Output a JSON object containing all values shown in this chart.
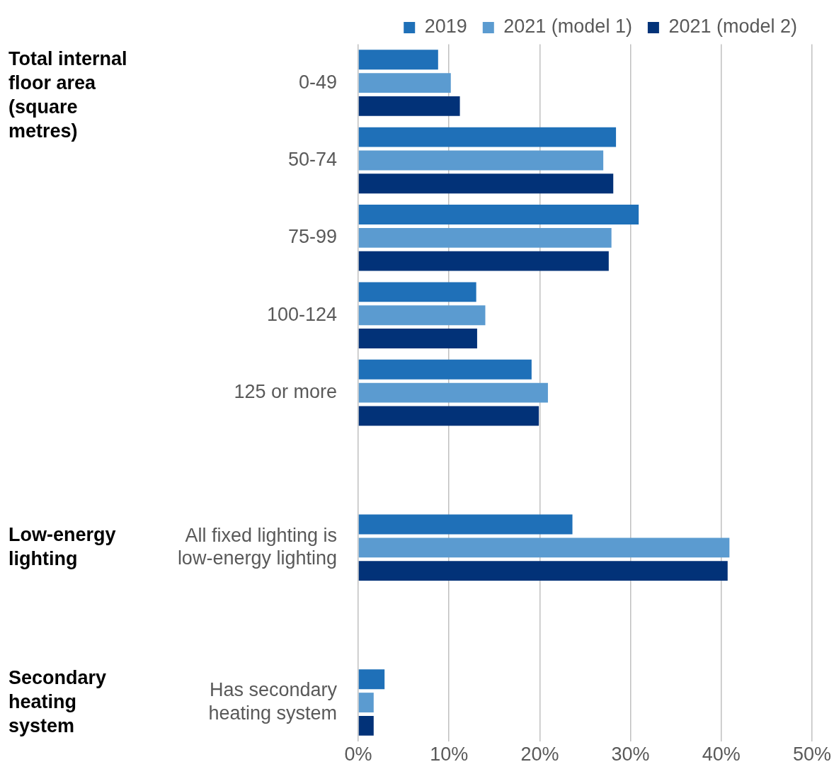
{
  "chart_data": {
    "type": "bar",
    "orientation": "horizontal",
    "categories": [
      "0-49",
      "50-74",
      "75-99",
      "100-124",
      "125 or more",
      null,
      "All fixed lighting is low-energy lighting",
      null,
      "Has secondary heating system"
    ],
    "series": [
      {
        "name": "2019",
        "color": "#1f70b8",
        "values": [
          8.8,
          28.4,
          30.9,
          13.0,
          19.1,
          null,
          23.6,
          null,
          2.9
        ]
      },
      {
        "name": "2021 (model 1)",
        "color": "#5b9bd0",
        "values": [
          10.2,
          27.0,
          27.9,
          14.0,
          20.9,
          null,
          40.9,
          null,
          1.7
        ]
      },
      {
        "name": "2021 (model 2)",
        "color": "#023278",
        "values": [
          11.2,
          28.1,
          27.6,
          13.1,
          19.9,
          null,
          40.7,
          null,
          1.7
        ]
      }
    ],
    "xlim": [
      0,
      50
    ],
    "xticks": [
      {
        "value": 0,
        "label": "0%"
      },
      {
        "value": 10,
        "label": "10%"
      },
      {
        "value": 20,
        "label": "20%"
      },
      {
        "value": 30,
        "label": "30%"
      },
      {
        "value": 40,
        "label": "40%"
      },
      {
        "value": 50,
        "label": "50%"
      }
    ],
    "grid": "x",
    "legend": "top right",
    "annotations": [
      "Total internal floor area (square metres)",
      "Low-energy lighting",
      "Secondary heating system"
    ]
  }
}
